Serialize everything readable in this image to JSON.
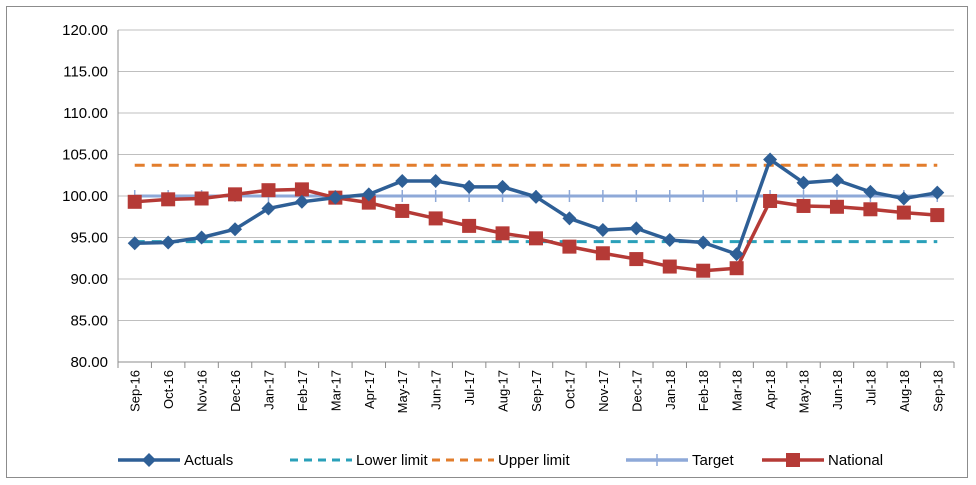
{
  "chart_data": {
    "type": "line",
    "title": "",
    "xlabel": "",
    "ylabel": "",
    "ylim": [
      80,
      120
    ],
    "yticks": [
      "80.00",
      "85.00",
      "90.00",
      "95.00",
      "100.00",
      "105.00",
      "110.00",
      "115.00",
      "120.00"
    ],
    "ytick_values": [
      80,
      85,
      90,
      95,
      100,
      105,
      110,
      115,
      120
    ],
    "grid": "horizontal",
    "legend_position": "bottom",
    "categories": [
      "Sep-16",
      "Oct-16",
      "Nov-16",
      "Dec-16",
      "Jan-17",
      "Feb-17",
      "Mar-17",
      "Apr-17",
      "May-17",
      "Jun-17",
      "Jul-17",
      "Aug-17",
      "Sep-17",
      "Oct-17",
      "Nov-17",
      "Dec-17",
      "Jan-18",
      "Feb-18",
      "Mar-18",
      "Apr-18",
      "May-18",
      "Jun-18",
      "Jul-18",
      "Aug-18",
      "Sep-18"
    ],
    "series": [
      {
        "name": "Actuals",
        "color": "#2e5f96",
        "style": "solid",
        "marker": "diamond",
        "values": [
          94.3,
          94.4,
          95.0,
          96.0,
          98.5,
          99.3,
          99.8,
          100.2,
          101.8,
          101.8,
          101.1,
          101.1,
          99.9,
          97.3,
          95.9,
          96.1,
          94.7,
          94.4,
          93.0,
          104.4,
          101.6,
          101.9,
          100.5,
          99.7,
          100.4
        ]
      },
      {
        "name": "Lower limit",
        "color": "#2aa0b9",
        "style": "dashed",
        "marker": "none",
        "values": [
          94.5,
          94.5,
          94.5,
          94.5,
          94.5,
          94.5,
          94.5,
          94.5,
          94.5,
          94.5,
          94.5,
          94.5,
          94.5,
          94.5,
          94.5,
          94.5,
          94.5,
          94.5,
          94.5,
          94.5,
          94.5,
          94.5,
          94.5,
          94.5,
          94.5
        ]
      },
      {
        "name": "Upper limit",
        "color": "#e27d2c",
        "style": "dashed",
        "marker": "none",
        "values": [
          103.7,
          103.7,
          103.7,
          103.7,
          103.7,
          103.7,
          103.7,
          103.7,
          103.7,
          103.7,
          103.7,
          103.7,
          103.7,
          103.7,
          103.7,
          103.7,
          103.7,
          103.7,
          103.7,
          103.7,
          103.7,
          103.7,
          103.7,
          103.7,
          103.7
        ]
      },
      {
        "name": "Target",
        "color": "#8ea9d8",
        "style": "solid",
        "marker": "plus",
        "values": [
          100,
          100,
          100,
          100,
          100,
          100,
          100,
          100,
          100,
          100,
          100,
          100,
          100,
          100,
          100,
          100,
          100,
          100,
          100,
          100,
          100,
          100,
          100,
          100,
          100
        ]
      },
      {
        "name": "National",
        "color": "#b53a36",
        "style": "solid",
        "marker": "square",
        "values": [
          99.3,
          99.6,
          99.7,
          100.2,
          100.7,
          100.8,
          99.8,
          99.2,
          98.2,
          97.3,
          96.4,
          95.5,
          94.9,
          93.9,
          93.1,
          92.4,
          91.5,
          91.0,
          91.3,
          99.4,
          98.8,
          98.7,
          98.4,
          98.0,
          97.7
        ]
      }
    ]
  }
}
